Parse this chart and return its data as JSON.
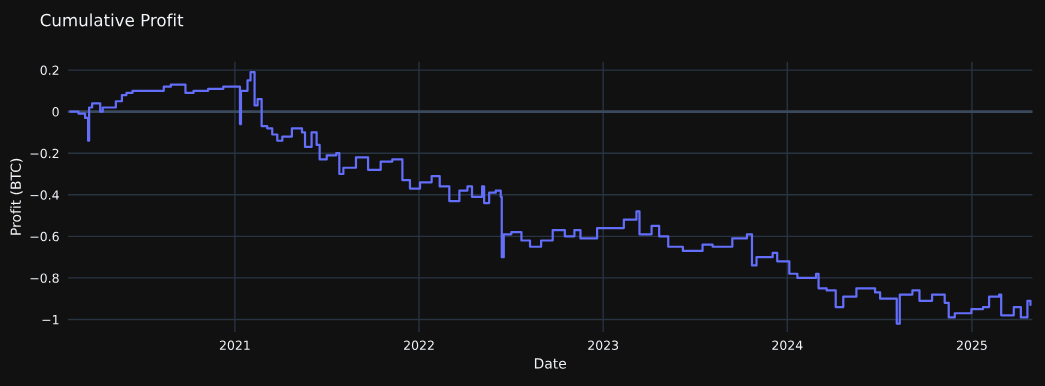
{
  "chart_data": {
    "type": "step",
    "title": "Cumulative Profit",
    "xlabel": "Date",
    "ylabel": "Profit (BTC)",
    "x": [
      "2020-02-10",
      "2020-02-26",
      "2020-03-10",
      "2020-03-16",
      "2020-03-18",
      "2020-03-24",
      "2020-04-09",
      "2020-04-14",
      "2020-05-10",
      "2020-05-22",
      "2020-05-31",
      "2020-06-12",
      "2020-08-04",
      "2020-08-13",
      "2020-08-27",
      "2020-09-18",
      "2020-09-25",
      "2020-10-11",
      "2020-11-09",
      "2020-12-09",
      "2021-01-07",
      "2021-01-11",
      "2021-01-13",
      "2021-01-26",
      "2021-02-01",
      "2021-02-07",
      "2021-02-09",
      "2021-02-15",
      "2021-02-23",
      "2021-03-06",
      "2021-03-16",
      "2021-03-26",
      "2021-04-05",
      "2021-04-24",
      "2021-05-14",
      "2021-05-20",
      "2021-06-02",
      "2021-06-12",
      "2021-06-18",
      "2021-07-02",
      "2021-07-21",
      "2021-07-27",
      "2021-08-04",
      "2021-08-29",
      "2021-09-22",
      "2021-10-17",
      "2021-11-09",
      "2021-11-29",
      "2021-12-14",
      "2022-01-03",
      "2022-01-26",
      "2022-02-11",
      "2022-03-02",
      "2022-03-22",
      "2022-04-07",
      "2022-04-16",
      "2022-05-06",
      "2022-05-10",
      "2022-05-20",
      "2022-06-02",
      "2022-06-12",
      "2022-06-14",
      "2022-06-18",
      "2022-07-03",
      "2022-07-23",
      "2022-08-09",
      "2022-08-31",
      "2022-09-23",
      "2022-10-17",
      "2022-11-05",
      "2022-11-17",
      "2022-12-20",
      "2023-01-15",
      "2023-02-11",
      "2023-03-08",
      "2023-03-14",
      "2023-04-07",
      "2023-04-22",
      "2023-05-10",
      "2023-06-08",
      "2023-07-17",
      "2023-08-06",
      "2023-09-14",
      "2023-10-13",
      "2023-10-23",
      "2023-11-01",
      "2023-12-03",
      "2023-12-12",
      "2024-01-05",
      "2024-01-21",
      "2024-02-27",
      "2024-03-03",
      "2024-03-19",
      "2024-04-06",
      "2024-04-21",
      "2024-05-17",
      "2024-06-23",
      "2024-07-03",
      "2024-08-05",
      "2024-08-11",
      "2024-09-05",
      "2024-09-19",
      "2024-10-14",
      "2024-11-08",
      "2024-11-16",
      "2024-11-28",
      "2024-12-31",
      "2025-01-23",
      "2025-02-04",
      "2025-02-24",
      "2025-02-28",
      "2025-03-25",
      "2025-04-08",
      "2025-04-21",
      "2025-04-27"
    ],
    "series": [
      {
        "color": "#636efa",
        "values": [
          0.0,
          -0.01,
          -0.03,
          -0.14,
          0.02,
          0.04,
          0.0,
          0.02,
          0.05,
          0.08,
          0.09,
          0.1,
          0.1,
          0.12,
          0.13,
          0.13,
          0.09,
          0.1,
          0.11,
          0.12,
          0.12,
          -0.06,
          0.1,
          0.15,
          0.19,
          0.19,
          0.03,
          0.06,
          -0.07,
          -0.08,
          -0.11,
          -0.14,
          -0.12,
          -0.08,
          -0.1,
          -0.17,
          -0.1,
          -0.16,
          -0.23,
          -0.21,
          -0.2,
          -0.3,
          -0.27,
          -0.22,
          -0.28,
          -0.24,
          -0.23,
          -0.33,
          -0.37,
          -0.34,
          -0.31,
          -0.36,
          -0.43,
          -0.38,
          -0.36,
          -0.41,
          -0.36,
          -0.44,
          -0.39,
          -0.38,
          -0.41,
          -0.7,
          -0.59,
          -0.58,
          -0.62,
          -0.65,
          -0.62,
          -0.57,
          -0.6,
          -0.57,
          -0.61,
          -0.56,
          -0.56,
          -0.52,
          -0.48,
          -0.59,
          -0.55,
          -0.6,
          -0.65,
          -0.67,
          -0.64,
          -0.65,
          -0.61,
          -0.59,
          -0.74,
          -0.7,
          -0.68,
          -0.72,
          -0.78,
          -0.8,
          -0.78,
          -0.85,
          -0.86,
          -0.94,
          -0.89,
          -0.85,
          -0.87,
          -0.9,
          -1.02,
          -0.88,
          -0.86,
          -0.91,
          -0.88,
          -0.92,
          -0.99,
          -0.97,
          -0.95,
          -0.94,
          -0.89,
          -0.88,
          -0.98,
          -0.94,
          -0.99,
          -0.91,
          -0.93
        ]
      }
    ],
    "xlim": [
      "2020-02-05",
      "2025-05-01"
    ],
    "ylim": [
      -1.06,
      0.24
    ],
    "xticks": [
      {
        "value": "2021-01-01",
        "label": "2021"
      },
      {
        "value": "2022-01-01",
        "label": "2022"
      },
      {
        "value": "2023-01-01",
        "label": "2023"
      },
      {
        "value": "2024-01-01",
        "label": "2024"
      },
      {
        "value": "2025-01-01",
        "label": "2025"
      }
    ],
    "yticks": [
      0.2,
      0,
      {
        "value": -0.2,
        "label": "−0.2"
      },
      {
        "value": -0.4,
        "label": "−0.4"
      },
      {
        "value": -0.6,
        "label": "−0.6"
      },
      {
        "value": -0.8,
        "label": "−0.8"
      },
      {
        "value": -1,
        "label": "−1"
      }
    ],
    "ref_lines": [
      {
        "axis": "y",
        "value": 0,
        "color": "#3a4a5c"
      }
    ],
    "grid": true,
    "marker": "none",
    "line_style": "solid",
    "legend": false
  }
}
